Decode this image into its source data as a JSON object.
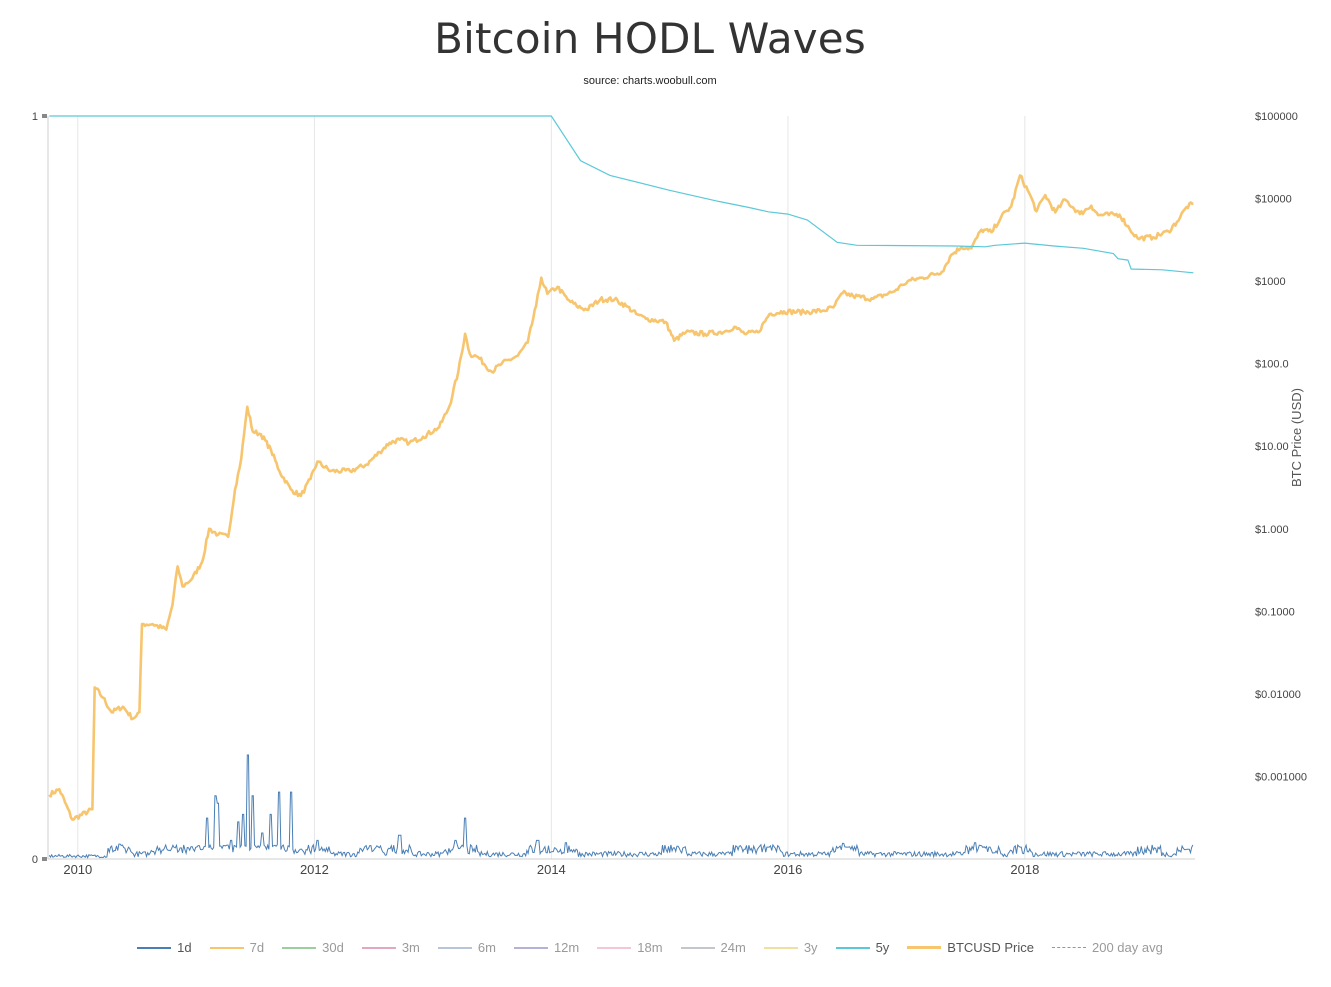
{
  "chart_data": {
    "type": "line",
    "title": "Bitcoin HODL Waves",
    "subtitle": "source: charts.woobull.com",
    "x_range": [
      "2009-10",
      "2019-06"
    ],
    "x_ticks": [
      "2010",
      "2012",
      "2014",
      "2016",
      "2018"
    ],
    "y_left": {
      "range": [
        0,
        1
      ],
      "ticks": [
        "0",
        "1"
      ]
    },
    "y_right": {
      "label": "BTC Price (USD)",
      "scale": "log",
      "range": [
        0.0001,
        100000
      ],
      "ticks": [
        {
          "value": 0.001,
          "label": "$0.001000"
        },
        {
          "value": 0.01,
          "label": "$0.01000"
        },
        {
          "value": 0.1,
          "label": "$0.1000"
        },
        {
          "value": 1,
          "label": "$1.000"
        },
        {
          "value": 10,
          "label": "$10.00"
        },
        {
          "value": 100,
          "label": "$100.0"
        },
        {
          "value": 1000,
          "label": "$1000"
        },
        {
          "value": 10000,
          "label": "$10000"
        },
        {
          "value": 100000,
          "label": "$100000"
        }
      ]
    },
    "grid": "vertical",
    "legend_position": "bottom",
    "series": [
      {
        "name": "BTCUSD Price",
        "axis": "right",
        "color": "#f7c56e",
        "points": [
          [
            "2009-10-05",
            0.0006
          ],
          [
            "2009-11-05",
            0.0007
          ],
          [
            "2009-12-15",
            0.0003
          ],
          [
            "2010-02-15",
            0.0004
          ],
          [
            "2010-02-22",
            0.012
          ],
          [
            "2010-03-20",
            0.009
          ],
          [
            "2010-04-15",
            0.006
          ],
          [
            "2010-05-20",
            0.007
          ],
          [
            "2010-06-20",
            0.005
          ],
          [
            "2010-07-10",
            0.006
          ],
          [
            "2010-07-18",
            0.07
          ],
          [
            "2010-08-20",
            0.07
          ],
          [
            "2010-10-01",
            0.06
          ],
          [
            "2010-10-20",
            0.12
          ],
          [
            "2010-11-05",
            0.35
          ],
          [
            "2010-11-20",
            0.2
          ],
          [
            "2010-12-20",
            0.25
          ],
          [
            "2011-01-20",
            0.4
          ],
          [
            "2011-02-10",
            1.0
          ],
          [
            "2011-03-10",
            0.85
          ],
          [
            "2011-04-10",
            0.8
          ],
          [
            "2011-05-01",
            3.0
          ],
          [
            "2011-05-20",
            7.0
          ],
          [
            "2011-06-08",
            30
          ],
          [
            "2011-06-25",
            15
          ],
          [
            "2011-07-20",
            14
          ],
          [
            "2011-08-20",
            9
          ],
          [
            "2011-09-15",
            5
          ],
          [
            "2011-10-20",
            3
          ],
          [
            "2011-11-20",
            2.5
          ],
          [
            "2011-12-20",
            4
          ],
          [
            "2012-01-10",
            6.5
          ],
          [
            "2012-02-20",
            5
          ],
          [
            "2012-04-20",
            5
          ],
          [
            "2012-06-10",
            6
          ],
          [
            "2012-07-20",
            8.5
          ],
          [
            "2012-08-20",
            11
          ],
          [
            "2012-09-20",
            12
          ],
          [
            "2012-10-20",
            11
          ],
          [
            "2012-12-01",
            13
          ],
          [
            "2013-01-20",
            17
          ],
          [
            "2013-02-20",
            30
          ],
          [
            "2013-03-20",
            80
          ],
          [
            "2013-04-10",
            230
          ],
          [
            "2013-04-25",
            130
          ],
          [
            "2013-05-20",
            120
          ],
          [
            "2013-07-01",
            80
          ],
          [
            "2013-08-01",
            100
          ],
          [
            "2013-09-20",
            125
          ],
          [
            "2013-10-20",
            180
          ],
          [
            "2013-11-15",
            500
          ],
          [
            "2013-12-01",
            1100
          ],
          [
            "2013-12-20",
            700
          ],
          [
            "2014-01-20",
            850
          ],
          [
            "2014-02-20",
            600
          ],
          [
            "2014-03-20",
            500
          ],
          [
            "2014-04-20",
            450
          ],
          [
            "2014-06-01",
            600
          ],
          [
            "2014-07-15",
            600
          ],
          [
            "2014-08-20",
            500
          ],
          [
            "2014-09-20",
            400
          ],
          [
            "2014-10-20",
            350
          ],
          [
            "2014-12-20",
            320
          ],
          [
            "2015-01-15",
            190
          ],
          [
            "2015-02-20",
            240
          ],
          [
            "2015-04-20",
            230
          ],
          [
            "2015-06-20",
            245
          ],
          [
            "2015-07-20",
            280
          ],
          [
            "2015-08-20",
            230
          ],
          [
            "2015-10-01",
            240
          ],
          [
            "2015-11-05",
            400
          ],
          [
            "2015-12-20",
            430
          ],
          [
            "2016-02-20",
            420
          ],
          [
            "2016-04-20",
            440
          ],
          [
            "2016-05-20",
            480
          ],
          [
            "2016-06-18",
            720
          ],
          [
            "2016-07-20",
            660
          ],
          [
            "2016-09-20",
            610
          ],
          [
            "2016-11-20",
            740
          ],
          [
            "2016-12-20",
            900
          ],
          [
            "2017-01-05",
            1000
          ],
          [
            "2017-02-20",
            1100
          ],
          [
            "2017-04-20",
            1300
          ],
          [
            "2017-05-20",
            2100
          ],
          [
            "2017-06-20",
            2600
          ],
          [
            "2017-07-20",
            2500
          ],
          [
            "2017-08-20",
            4200
          ],
          [
            "2017-09-20",
            3900
          ],
          [
            "2017-10-20",
            6000
          ],
          [
            "2017-11-20",
            8000
          ],
          [
            "2017-12-17",
            19000
          ],
          [
            "2018-01-15",
            11500
          ],
          [
            "2018-02-06",
            7000
          ],
          [
            "2018-03-05",
            11000
          ],
          [
            "2018-04-05",
            6800
          ],
          [
            "2018-05-05",
            9700
          ],
          [
            "2018-06-20",
            6500
          ],
          [
            "2018-07-25",
            8200
          ],
          [
            "2018-08-15",
            6300
          ],
          [
            "2018-10-20",
            6400
          ],
          [
            "2018-11-20",
            4300
          ],
          [
            "2018-12-15",
            3300
          ],
          [
            "2019-02-01",
            3400
          ],
          [
            "2019-03-20",
            4000
          ],
          [
            "2019-04-15",
            5200
          ],
          [
            "2019-05-15",
            7900
          ],
          [
            "2019-06-05",
            8700
          ]
        ]
      },
      {
        "name": "5y",
        "axis": "left",
        "color": "#5bc8d9",
        "points": [
          [
            "2009-10-05",
            1
          ],
          [
            "2014-01-01",
            1
          ],
          [
            "2014-04-01",
            0.94
          ],
          [
            "2014-07-01",
            0.92
          ],
          [
            "2015-01-01",
            0.9
          ],
          [
            "2015-06-01",
            0.885
          ],
          [
            "2015-09-01",
            0.877
          ],
          [
            "2015-11-01",
            0.871
          ],
          [
            "2016-01-01",
            0.868
          ],
          [
            "2016-03-01",
            0.86
          ],
          [
            "2016-06-01",
            0.83
          ],
          [
            "2016-08-01",
            0.826
          ],
          [
            "2017-06-01",
            0.825
          ],
          [
            "2017-09-01",
            0.824
          ],
          [
            "2017-10-01",
            0.826
          ],
          [
            "2018-01-01",
            0.829
          ],
          [
            "2018-04-01",
            0.825
          ],
          [
            "2018-07-01",
            0.822
          ],
          [
            "2018-10-01",
            0.815
          ],
          [
            "2018-10-15",
            0.808
          ],
          [
            "2018-11-15",
            0.806
          ],
          [
            "2018-11-25",
            0.794
          ],
          [
            "2018-12-01",
            0.794
          ],
          [
            "2019-03-01",
            0.793
          ],
          [
            "2019-06-05",
            0.789
          ]
        ]
      },
      {
        "name": "1d",
        "axis": "left",
        "color": "#4a7fb5",
        "baseline": 0.006,
        "spikes": [
          [
            "2010-05-10",
            0.02
          ],
          [
            "2010-09-20",
            0.012
          ],
          [
            "2010-11-15",
            0.015
          ],
          [
            "2011-01-10",
            0.018
          ],
          [
            "2011-02-05",
            0.055
          ],
          [
            "2011-03-01",
            0.085
          ],
          [
            "2011-03-10",
            0.075
          ],
          [
            "2011-04-20",
            0.025
          ],
          [
            "2011-05-10",
            0.05
          ],
          [
            "2011-05-25",
            0.06
          ],
          [
            "2011-06-10",
            0.14
          ],
          [
            "2011-06-25",
            0.085
          ],
          [
            "2011-07-25",
            0.035
          ],
          [
            "2011-08-20",
            0.06
          ],
          [
            "2011-09-15",
            0.09
          ],
          [
            "2011-10-20",
            0.09
          ],
          [
            "2012-01-10",
            0.025
          ],
          [
            "2012-06-20",
            0.018
          ],
          [
            "2012-09-20",
            0.032
          ],
          [
            "2013-03-10",
            0.025
          ],
          [
            "2013-04-10",
            0.055
          ],
          [
            "2013-11-20",
            0.025
          ],
          [
            "2014-02-15",
            0.022
          ],
          [
            "2015-01-15",
            0.015
          ],
          [
            "2015-08-20",
            0.013
          ],
          [
            "2015-11-01",
            0.016
          ],
          [
            "2016-06-20",
            0.021
          ],
          [
            "2016-07-01",
            0.016
          ],
          [
            "2017-08-01",
            0.022
          ],
          [
            "2017-09-15",
            0.016
          ],
          [
            "2017-12-20",
            0.016
          ],
          [
            "2019-01-20",
            0.012
          ],
          [
            "2019-05-20",
            0.013
          ]
        ]
      }
    ],
    "legend": [
      {
        "name": "1d",
        "color": "#4a7fb5",
        "style": "solid"
      },
      {
        "name": "7d",
        "color": "#f7c56e",
        "style": "solid"
      },
      {
        "name": "30d",
        "color": "#9bcf9b",
        "style": "solid"
      },
      {
        "name": "3m",
        "color": "#e3a8c1",
        "style": "solid"
      },
      {
        "name": "6m",
        "color": "#b8c4d8",
        "style": "solid"
      },
      {
        "name": "12m",
        "color": "#b5b2d8",
        "style": "solid"
      },
      {
        "name": "18m",
        "color": "#f3c7d5",
        "style": "solid"
      },
      {
        "name": "24m",
        "color": "#c3c7cc",
        "style": "solid"
      },
      {
        "name": "3y",
        "color": "#eee0a0",
        "style": "solid"
      },
      {
        "name": "5y",
        "color": "#5bc8d9",
        "style": "solid"
      },
      {
        "name": "BTCUSD Price",
        "color": "#f7c56e",
        "style": "thick"
      },
      {
        "name": "200 day avg",
        "color": "#8a9a9e",
        "style": "dashed"
      }
    ]
  }
}
